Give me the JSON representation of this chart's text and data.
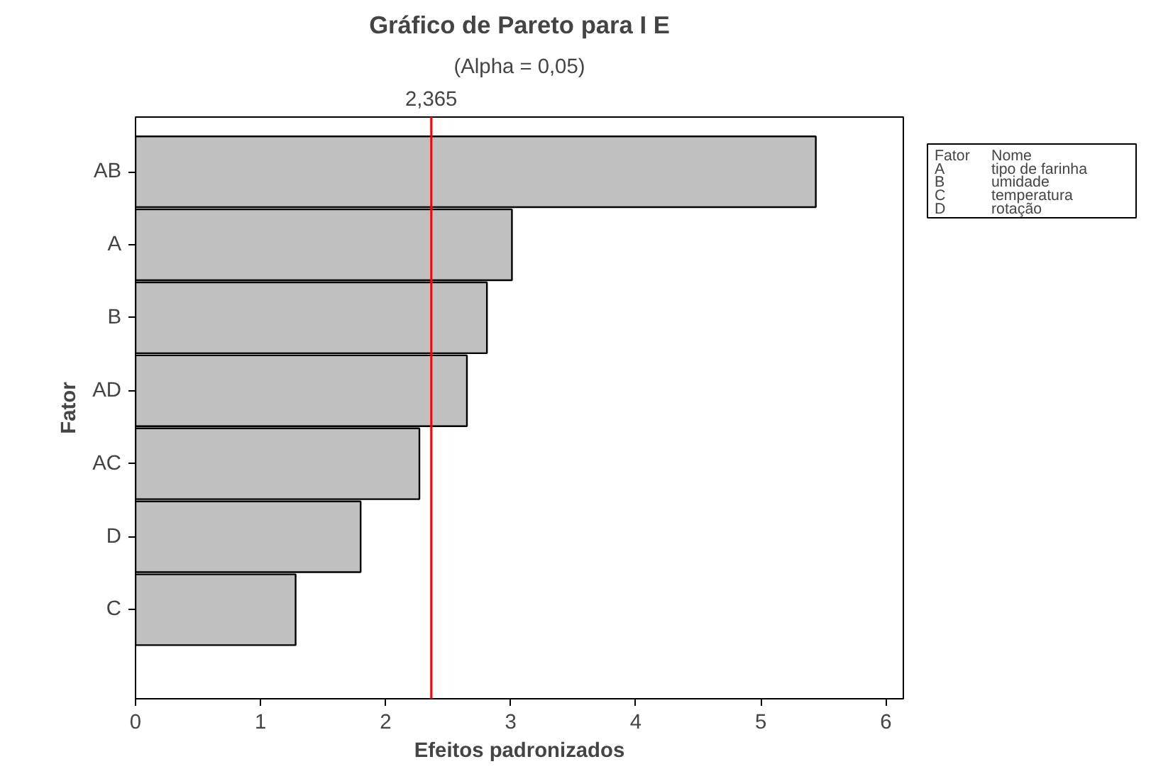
{
  "chart_data": {
    "type": "bar",
    "orientation": "horizontal",
    "title": "Gráfico de Pareto para I E",
    "subtitle": "(Alpha = 0,05)",
    "xlabel": "Efeitos padronizados",
    "ylabel": "Fator",
    "categories": [
      "AB",
      "A",
      "B",
      "AD",
      "AC",
      "D",
      "C"
    ],
    "values": [
      5.44,
      3.01,
      2.81,
      2.65,
      2.27,
      1.8,
      1.28
    ],
    "color": "#c0c0c0",
    "xlim": [
      0,
      6.14
    ],
    "xticks": [
      0,
      1,
      2,
      3,
      4,
      5,
      6
    ],
    "ref_lines": [
      {
        "axis": "x",
        "value": 2.365,
        "label": "2,365",
        "color": "#ff0000"
      }
    ],
    "grid": false,
    "annotations": [
      "Fator",
      "Nome",
      "A",
      "tipo de farinha",
      "B",
      "umidade",
      "C",
      "temperatura",
      "D",
      "rotação"
    ]
  }
}
